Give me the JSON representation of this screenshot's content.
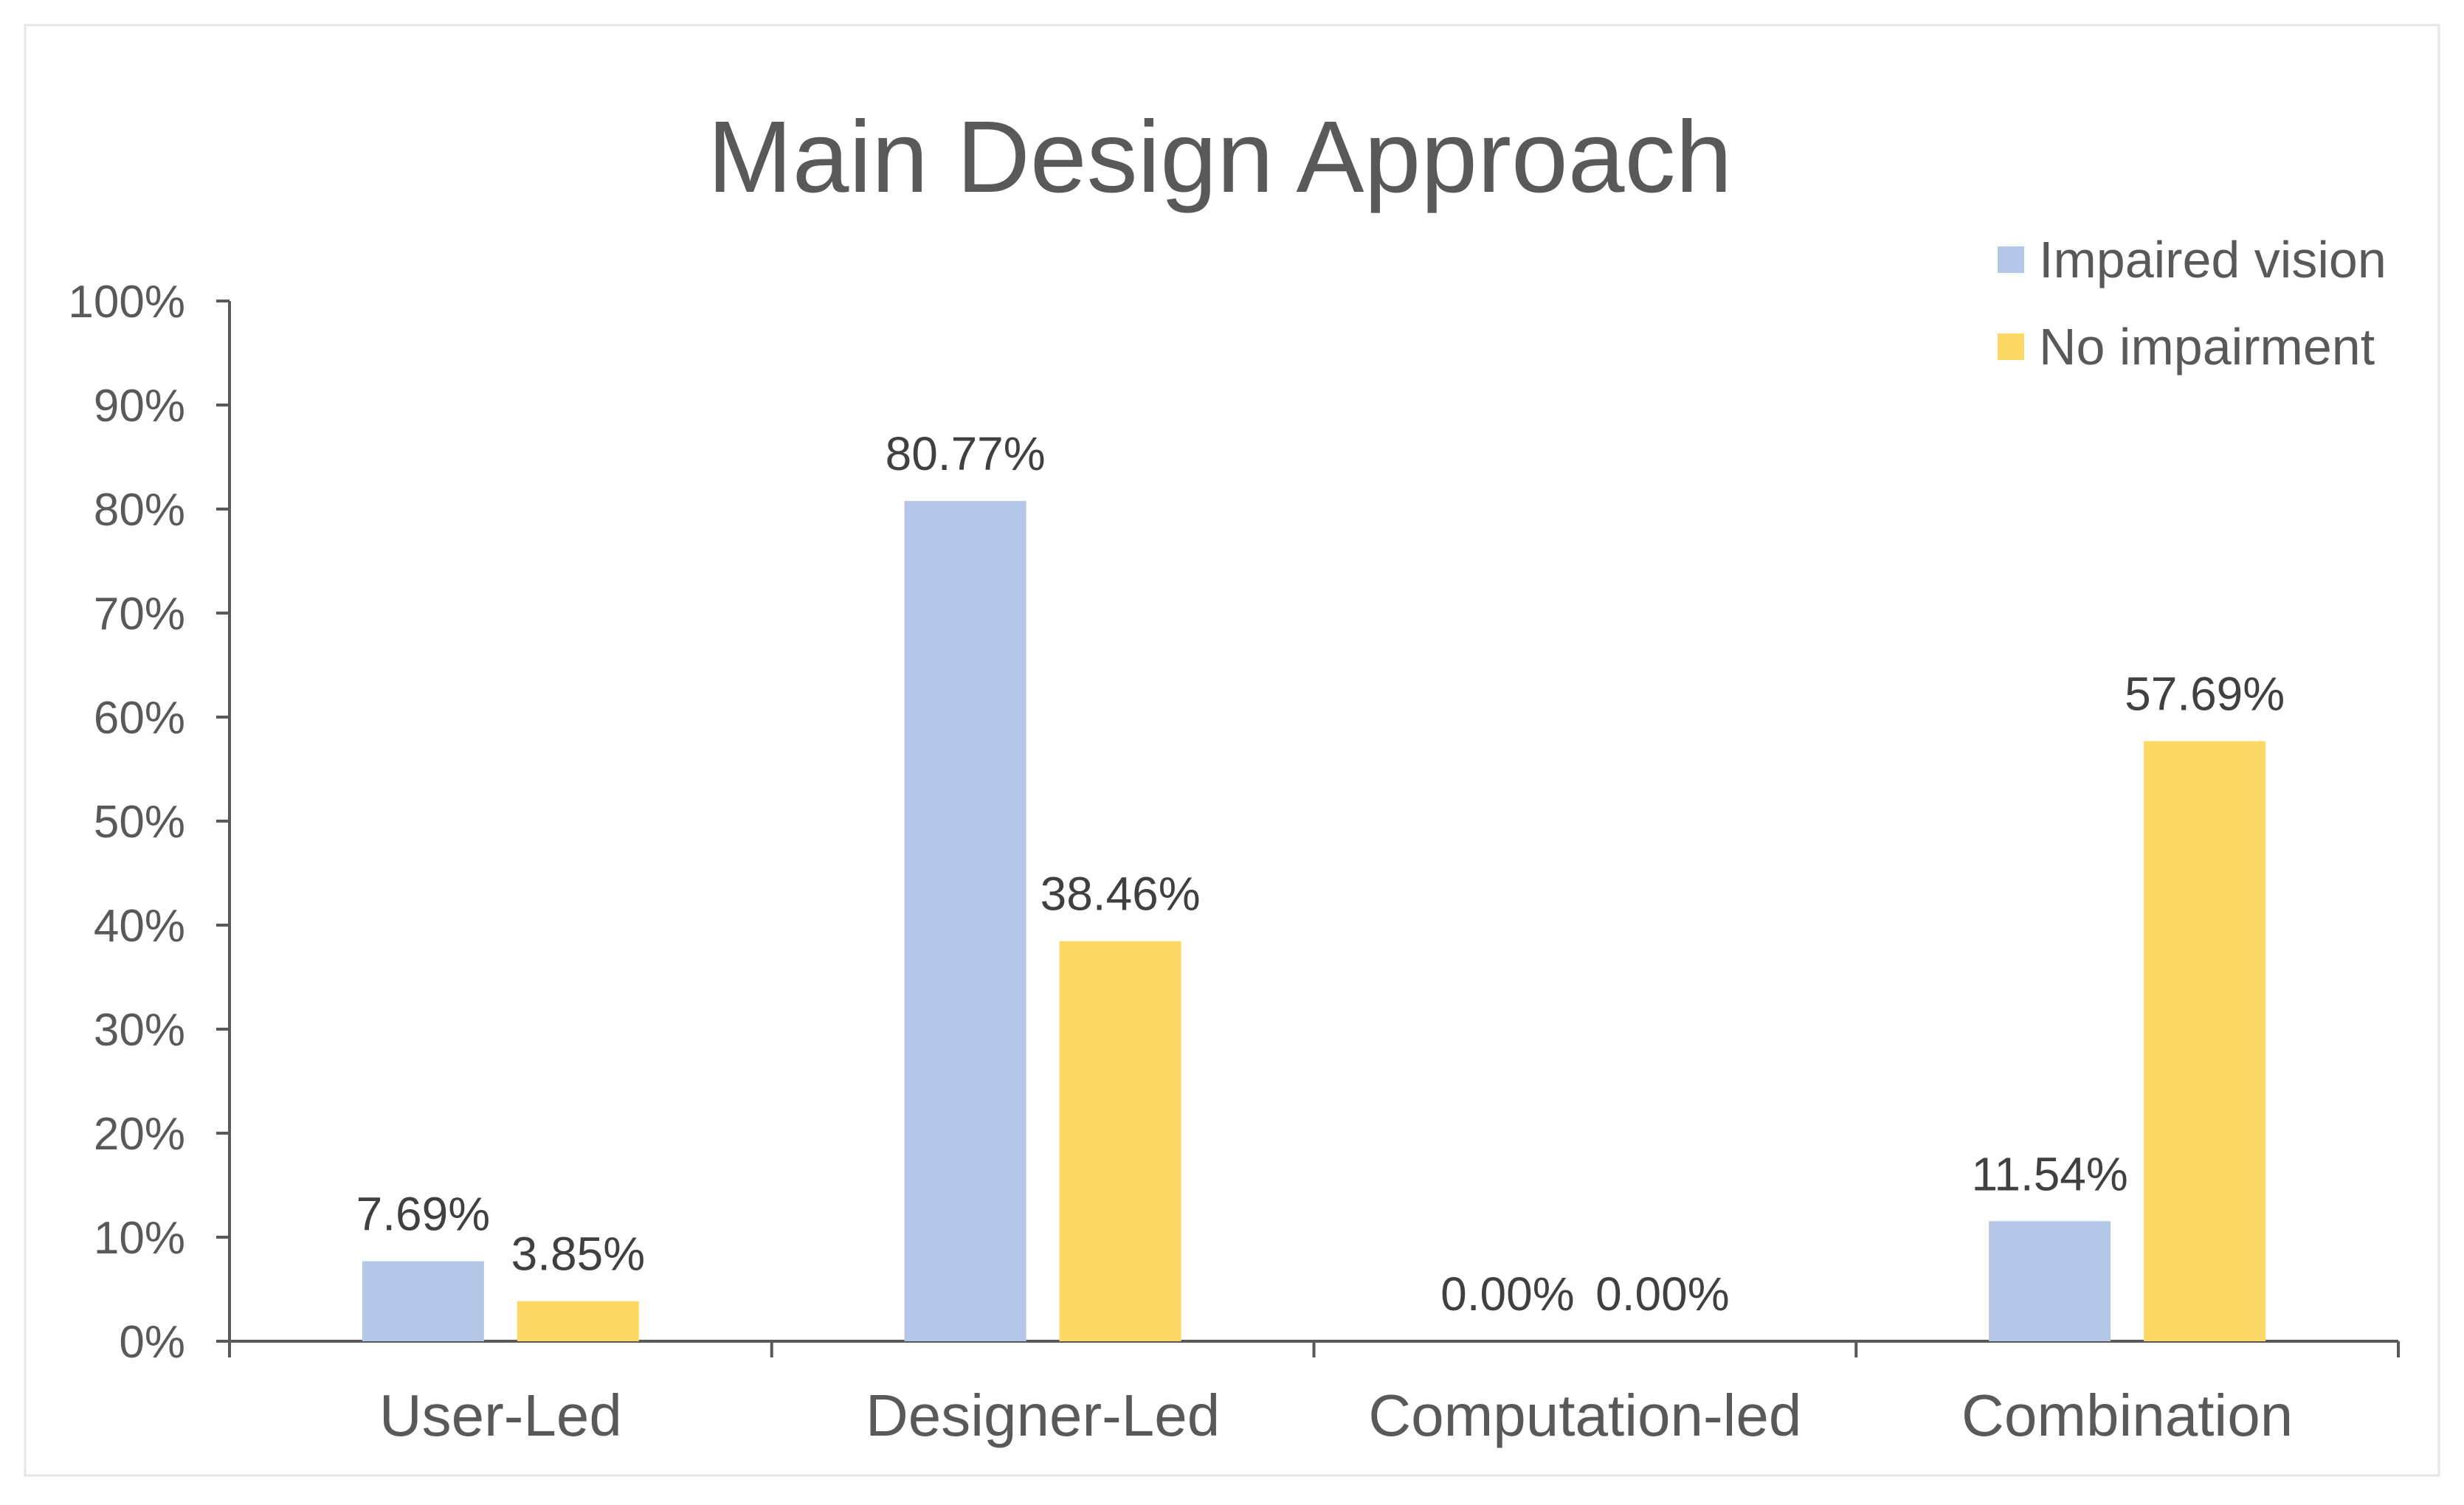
{
  "chart_data": {
    "type": "bar",
    "title": "Main Design Approach",
    "xlabel": "",
    "ylabel": "",
    "categories": [
      "User-Led",
      "Designer-Led",
      "Computation-led",
      "Combination"
    ],
    "series": [
      {
        "name": "Impaired vision",
        "color": "#B4C7E7",
        "values": [
          7.69,
          80.77,
          0.0,
          11.54
        ],
        "labels": [
          "7.69%",
          "80.77%",
          "0.00%",
          "11.54%"
        ]
      },
      {
        "name": "No impairment",
        "color": "#FFD966",
        "values": [
          3.85,
          38.46,
          0.0,
          57.69
        ],
        "labels": [
          "3.85%",
          "38.46%",
          "0.00%",
          "57.69%"
        ]
      }
    ],
    "ylim": [
      0,
      100
    ],
    "yticks": [
      0,
      10,
      20,
      30,
      40,
      50,
      60,
      70,
      80,
      90,
      100
    ],
    "ytick_labels": [
      "0%",
      "10%",
      "20%",
      "30%",
      "40%",
      "50%",
      "60%",
      "70%",
      "80%",
      "90%",
      "100%"
    ],
    "grid": false,
    "legend_position": "top-right",
    "colors": {
      "text": "#595959",
      "data_label": "#404040",
      "axis": "#595959",
      "border": "#e6e6e6"
    }
  }
}
